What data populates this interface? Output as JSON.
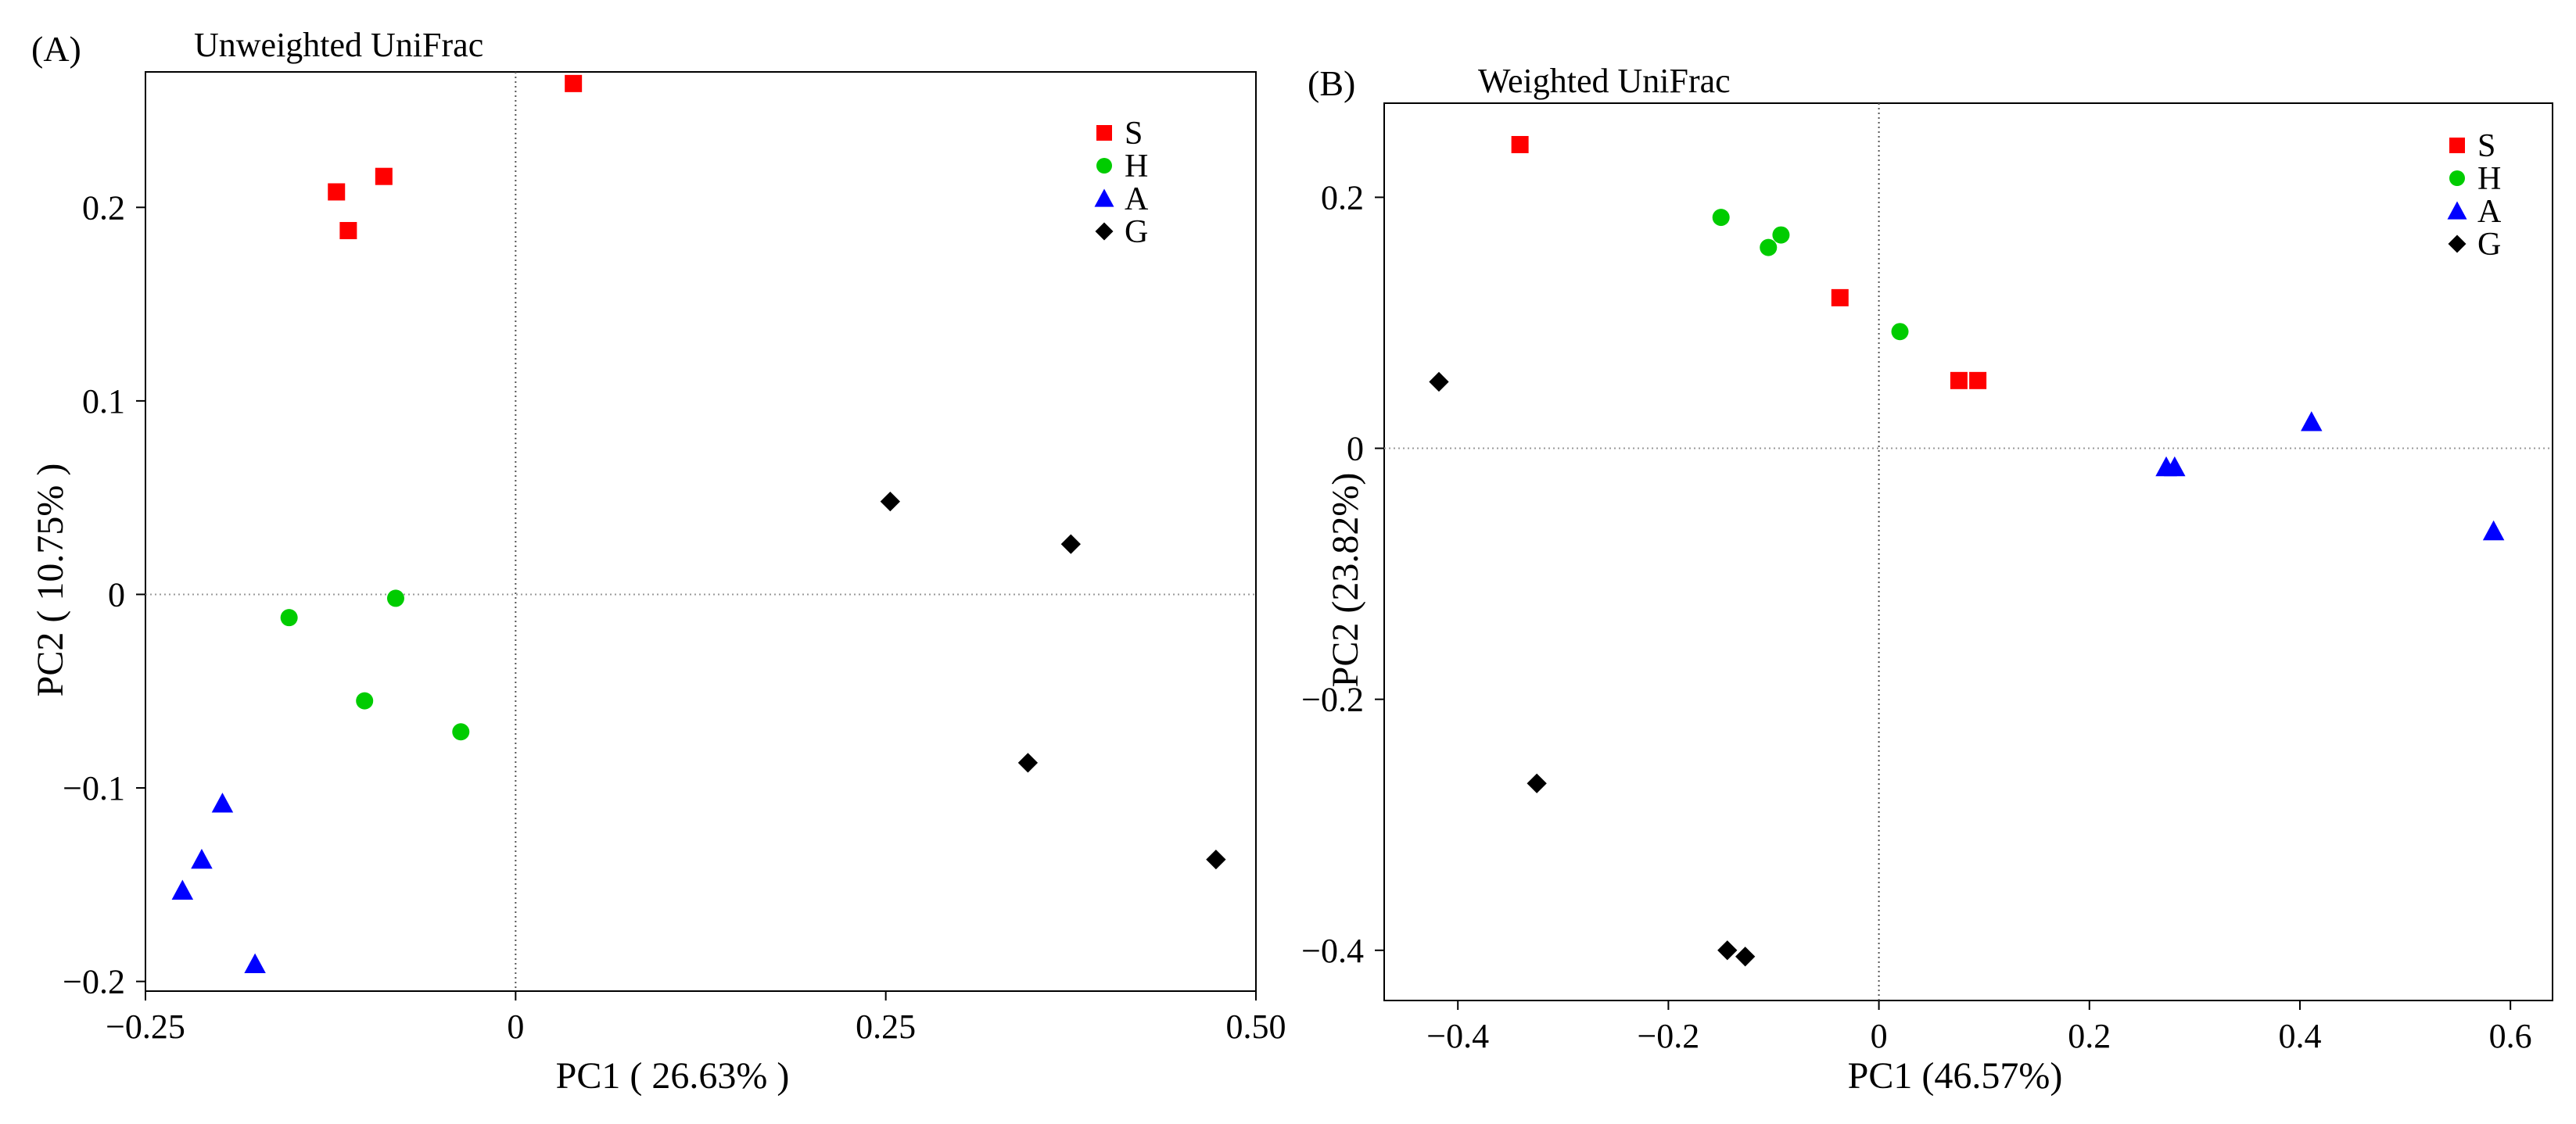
{
  "chart_data": [
    {
      "panel": "(A)",
      "type": "scatter",
      "title": "Unweighted UniFrac",
      "xlabel": "PC1 ( 26.63% )",
      "ylabel": "PC2 ( 10.75% )",
      "xlim": [
        -0.25,
        0.5
      ],
      "ylim": [
        -0.205,
        0.27
      ],
      "xticks": [
        -0.25,
        0,
        0.25,
        0.5
      ],
      "xtick_labels": [
        "-0.25",
        "0",
        "0.25",
        "0.50"
      ],
      "yticks": [
        -0.2,
        -0.1,
        0,
        0.1,
        0.2
      ],
      "ytick_labels": [
        "-0.2",
        "-0.1",
        "0",
        "0.1",
        "0.2"
      ],
      "grid": false,
      "zero_lines": true,
      "legend_position": "top-right",
      "series": [
        {
          "name": "S",
          "color": "#ff0000",
          "marker": "square",
          "x": [
            0.039,
            -0.121,
            -0.113,
            -0.089
          ],
          "y": [
            0.264,
            0.208,
            0.188,
            0.216
          ]
        },
        {
          "name": "H",
          "color": "#00cc00",
          "marker": "circle",
          "x": [
            -0.153,
            -0.081,
            -0.102,
            -0.037
          ],
          "y": [
            -0.012,
            -0.002,
            -0.055,
            -0.071
          ]
        },
        {
          "name": "A",
          "color": "#0000ff",
          "marker": "triangle",
          "x": [
            -0.198,
            -0.212,
            -0.225,
            -0.176
          ],
          "y": [
            -0.108,
            -0.137,
            -0.153,
            -0.191
          ]
        },
        {
          "name": "G",
          "color": "#000000",
          "marker": "diamond",
          "x": [
            0.253,
            0.375,
            0.346,
            0.473
          ],
          "y": [
            0.048,
            0.026,
            -0.087,
            -0.137
          ]
        }
      ]
    },
    {
      "panel": "(B)",
      "type": "scatter",
      "title": "Weighted UniFrac",
      "xlabel": "PC1 (46.57%)",
      "ylabel": "PC2 (23.82%)",
      "xlim": [
        -0.47,
        0.64
      ],
      "ylim": [
        -0.44,
        0.275
      ],
      "xticks": [
        -0.4,
        -0.2,
        0,
        0.2,
        0.4,
        0.6
      ],
      "xtick_labels": [
        "-0.4",
        "-0.2",
        "0",
        "0.2",
        "0.4",
        "0.6"
      ],
      "yticks": [
        -0.4,
        -0.2,
        0,
        0.2
      ],
      "ytick_labels": [
        "-0.4",
        "-0.2",
        "0",
        "0.2"
      ],
      "grid": false,
      "zero_lines": true,
      "legend_position": "top-right",
      "series": [
        {
          "name": "S",
          "color": "#ff0000",
          "marker": "square",
          "x": [
            -0.341,
            -0.037,
            0.076,
            0.094
          ],
          "y": [
            0.242,
            0.12,
            0.054,
            0.054
          ]
        },
        {
          "name": "H",
          "color": "#00cc00",
          "marker": "circle",
          "x": [
            -0.15,
            -0.105,
            -0.093,
            0.02
          ],
          "y": [
            0.184,
            0.16,
            0.17,
            0.093
          ]
        },
        {
          "name": "A",
          "color": "#0000ff",
          "marker": "triangle",
          "x": [
            0.273,
            0.281,
            0.411,
            0.584
          ],
          "y": [
            -0.015,
            -0.015,
            0.021,
            -0.066
          ]
        },
        {
          "name": "G",
          "color": "#000000",
          "marker": "diamond",
          "x": [
            -0.418,
            -0.325,
            -0.144,
            -0.127
          ],
          "y": [
            0.053,
            -0.267,
            -0.4,
            -0.405
          ]
        }
      ]
    }
  ]
}
